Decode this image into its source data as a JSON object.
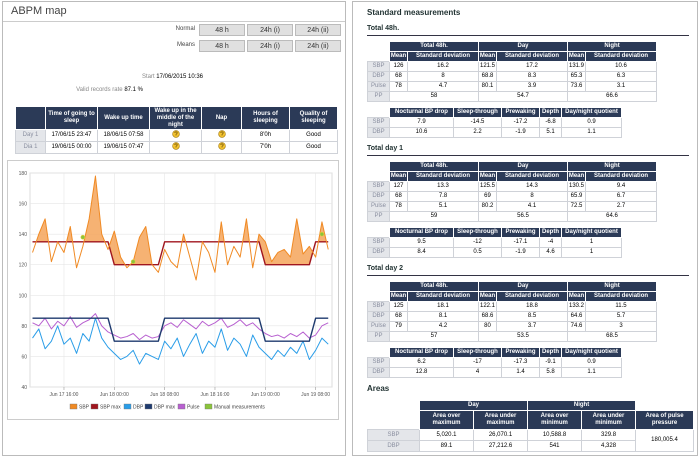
{
  "left": {
    "title": "ABPM map",
    "button_rows": [
      {
        "label": "Normal",
        "options": [
          "48 h",
          "24h (i)",
          "24h (ii)"
        ]
      },
      {
        "label": "Means",
        "options": [
          "48 h",
          "24h (i)",
          "24h (ii)"
        ]
      }
    ],
    "start": {
      "label": "Start",
      "value": "17/06/2015 10:36"
    },
    "valid": {
      "label": "Valid records rate",
      "value": "87.1 %"
    },
    "sleep_table": {
      "headers": [
        "Time of going to sleep",
        "Wake up time",
        "Wake up in the middle of the night",
        "Nap",
        "Hours of sleeping",
        "Quality of sleeping"
      ],
      "rows": [
        [
          "Day 1",
          "17/06/15 23:47",
          "18/06/15 07:58",
          null,
          null,
          "8'0h",
          "Good"
        ],
        [
          "Dia 1",
          "19/06/15 00:00",
          "19/06/15 07:47",
          null,
          null,
          "7'0h",
          "Good"
        ]
      ]
    }
  },
  "chart_data": {
    "type": "line",
    "x": [
      11,
      12,
      13,
      14,
      15,
      16,
      17,
      18,
      19,
      20,
      21,
      22,
      23,
      24,
      25,
      26,
      27,
      28,
      29,
      30,
      31,
      32,
      33,
      34,
      35,
      36,
      37,
      38,
      39,
      40,
      41,
      42,
      43,
      44,
      45,
      46,
      47,
      48,
      49,
      50,
      51,
      52,
      53,
      54,
      55,
      56,
      57,
      58
    ],
    "xlim": [
      10.6,
      58.6
    ],
    "xticks": [
      {
        "value": 16,
        "label": "Jun 17 16:00"
      },
      {
        "value": 24,
        "label": "Jun 18 00:00"
      },
      {
        "value": 32,
        "label": "Jun 18 08:00"
      },
      {
        "value": 40,
        "label": "Jun 18 16:00"
      },
      {
        "value": 48,
        "label": "Jun 19 00:00"
      },
      {
        "value": 56,
        "label": "Jun 19 08:00"
      }
    ],
    "ylim": [
      40,
      180
    ],
    "yticks": [
      40,
      60,
      80,
      100,
      120,
      140,
      160,
      180
    ],
    "grid": true,
    "legend": "bottom",
    "series": [
      {
        "name": "SBP",
        "color": "#f08a24",
        "values": [
          128,
          140,
          150,
          122,
          135,
          128,
          145,
          118,
          132,
          150,
          178,
          140,
          130,
          142,
          125,
          118,
          122,
          138,
          145,
          120,
          115,
          130,
          122,
          118,
          140,
          125,
          110,
          135,
          128,
          115,
          148,
          120,
          132,
          125,
          150,
          118,
          140,
          135,
          122,
          128,
          130,
          125,
          150,
          127,
          132,
          125,
          148,
          130
        ]
      },
      {
        "name": "SBP max",
        "color": "#a0161e",
        "values": [
          135,
          135,
          135,
          135,
          135,
          135,
          135,
          135,
          135,
          135,
          135,
          135,
          135,
          120,
          120,
          120,
          120,
          120,
          120,
          120,
          120,
          135,
          135,
          135,
          135,
          135,
          135,
          135,
          135,
          135,
          135,
          135,
          135,
          135,
          135,
          135,
          135,
          120,
          120,
          120,
          120,
          120,
          120,
          120,
          120,
          135,
          135,
          135
        ]
      },
      {
        "name": "DBP",
        "color": "#2a9de8",
        "values": [
          72,
          78,
          65,
          70,
          80,
          68,
          72,
          62,
          75,
          70,
          85,
          72,
          66,
          62,
          58,
          60,
          64,
          55,
          62,
          60,
          58,
          70,
          65,
          72,
          60,
          68,
          75,
          62,
          70,
          66,
          78,
          64,
          72,
          68,
          60,
          74,
          66,
          62,
          58,
          64,
          60,
          66,
          62,
          70,
          58,
          64,
          72,
          68
        ]
      },
      {
        "name": "DBP max",
        "color": "#1e3a6e",
        "values": [
          85,
          85,
          85,
          85,
          85,
          85,
          85,
          85,
          85,
          85,
          85,
          85,
          85,
          70,
          70,
          70,
          70,
          70,
          70,
          70,
          70,
          85,
          85,
          85,
          85,
          85,
          85,
          85,
          85,
          85,
          85,
          85,
          85,
          85,
          85,
          85,
          85,
          70,
          70,
          70,
          70,
          70,
          70,
          70,
          70,
          85,
          85,
          85
        ]
      },
      {
        "name": "Pulse",
        "color": "#b860d0",
        "values": [
          82,
          80,
          85,
          78,
          83,
          80,
          86,
          79,
          82,
          84,
          88,
          80,
          76,
          74,
          72,
          73,
          75,
          71,
          74,
          72,
          73,
          80,
          82,
          79,
          84,
          81,
          78,
          83,
          80,
          82,
          85,
          79,
          81,
          84,
          80,
          82,
          78,
          75,
          73,
          74,
          72,
          75,
          73,
          76,
          72,
          74,
          80,
          82
        ]
      },
      {
        "name": "Manual measurements",
        "color": "#8ac43a",
        "type": "scatter",
        "x": [
          19,
          27,
          57
        ],
        "values": [
          138,
          122,
          140
        ]
      }
    ]
  },
  "right": {
    "title": "Standard measurements",
    "means_headers": {
      "groups": [
        "Total 48h.",
        "Day",
        "Night"
      ],
      "sub": [
        "Mean",
        "Standard deviation"
      ]
    },
    "index_headers": [
      "Nocturnal BP drop",
      "Sleep-through",
      "Prewaking",
      "Depth",
      "Day/night quotient"
    ],
    "sections": [
      {
        "title": "Total 48h.",
        "rows": [
          {
            "label": "SBP",
            "cells": [
              "126",
              "16.2",
              "121.5",
              "17.2",
              "131.9",
              "10.6"
            ]
          },
          {
            "label": "DBP",
            "cells": [
              "68",
              "8",
              "68.8",
              "8.3",
              "65.3",
              "6.3"
            ]
          },
          {
            "label": "Pulse",
            "cells": [
              "78",
              "4.7",
              "80.1",
              "3.9",
              "73.6",
              "3.1"
            ]
          }
        ],
        "pp": {
          "label": "PP",
          "cells": [
            "58",
            "54.7",
            "66.6"
          ]
        },
        "indices": [
          {
            "label": "SBP",
            "cells": [
              "7.9",
              "-14.5",
              "-17.2",
              "-6.8",
              "0.9"
            ]
          },
          {
            "label": "DBP",
            "cells": [
              "10.6",
              "2.2",
              "-1.9",
              "5.1",
              "1.1"
            ]
          }
        ]
      },
      {
        "title": "Total day 1",
        "rows": [
          {
            "label": "SBP",
            "cells": [
              "127",
              "13.3",
              "125.5",
              "14.3",
              "130.5",
              "9.4"
            ]
          },
          {
            "label": "DBP",
            "cells": [
              "68",
              "7.8",
              "69",
              "8",
              "65.9",
              "6.7"
            ]
          },
          {
            "label": "Pulse",
            "cells": [
              "78",
              "5.1",
              "80.2",
              "4.1",
              "72.5",
              "2.7"
            ]
          }
        ],
        "pp": {
          "label": "PP",
          "cells": [
            "59",
            "56.5",
            "64.6"
          ]
        },
        "indices": [
          {
            "label": "SBP",
            "cells": [
              "9.5",
              "-12",
              "-17.1",
              "-4",
              "1"
            ]
          },
          {
            "label": "DBP",
            "cells": [
              "8.4",
              "0.5",
              "-1.9",
              "4.6",
              "1"
            ]
          }
        ]
      },
      {
        "title": "Total day 2",
        "rows": [
          {
            "label": "SBP",
            "cells": [
              "125",
              "18.1",
              "122.1",
              "18.8",
              "133.2",
              "11.5"
            ]
          },
          {
            "label": "DBP",
            "cells": [
              "68",
              "8.1",
              "68.6",
              "8.5",
              "64.6",
              "5.7"
            ]
          },
          {
            "label": "Pulse",
            "cells": [
              "79",
              "4.2",
              "80",
              "3.7",
              "74.6",
              "3"
            ]
          }
        ],
        "pp": {
          "label": "PP",
          "cells": [
            "57",
            "53.5",
            "68.5"
          ]
        },
        "indices": [
          {
            "label": "SBP",
            "cells": [
              "6.2",
              "-17",
              "-17.3",
              "-9.1",
              "0.9"
            ]
          },
          {
            "label": "DBP",
            "cells": [
              "12.8",
              "4",
              "1.4",
              "5.8",
              "1.1"
            ]
          }
        ]
      }
    ],
    "areas": {
      "title": "Areas",
      "groups": [
        "Day",
        "Night"
      ],
      "sub": [
        "Area over maximum",
        "Area under maximum",
        "Area over minimum",
        "Area under minimum"
      ],
      "pulse_header": "Area of pulse pressure",
      "rows": [
        {
          "label": "SBP",
          "cells": [
            "5,020.1",
            "26,070.1",
            "10,588.8",
            "329.8"
          ]
        },
        {
          "label": "DBP",
          "cells": [
            "89.1",
            "27,212.6",
            "541",
            "4,328"
          ]
        }
      ],
      "pulse_value": "180,005.4"
    }
  }
}
